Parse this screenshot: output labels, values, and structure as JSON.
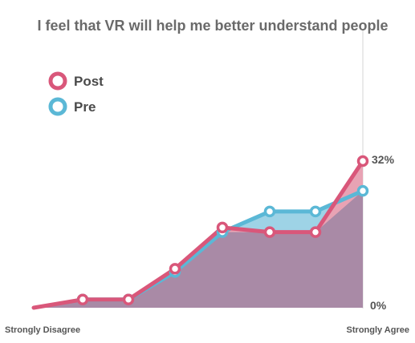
{
  "chart_data": {
    "type": "area",
    "title": "I feel that VR will help me better understand people",
    "x_end_labels": [
      "Strongly Disagree",
      "Strongly Agree"
    ],
    "x": [
      0,
      1,
      2,
      3,
      4,
      5,
      6,
      7,
      8
    ],
    "y_tick_labels": [
      "0%",
      "32%"
    ],
    "ylim": [
      0,
      32
    ],
    "series": [
      {
        "name": "Post",
        "color": "#d9577a",
        "fill": "#e8a3b4",
        "values": [
          0,
          1.8,
          1.8,
          8.5,
          17.5,
          16.5,
          16.5,
          32,
          null
        ]
      },
      {
        "name": "Pre",
        "color": "#5bb8d6",
        "fill": "#9ed3e6",
        "values": [
          null,
          1.8,
          1.8,
          7.8,
          16.5,
          21,
          21,
          25.5,
          null
        ]
      }
    ],
    "legend": {
      "placement": "top-left",
      "items": [
        "Post",
        "Pre"
      ]
    },
    "overlap_color": "#a98aa6",
    "grid": false
  }
}
